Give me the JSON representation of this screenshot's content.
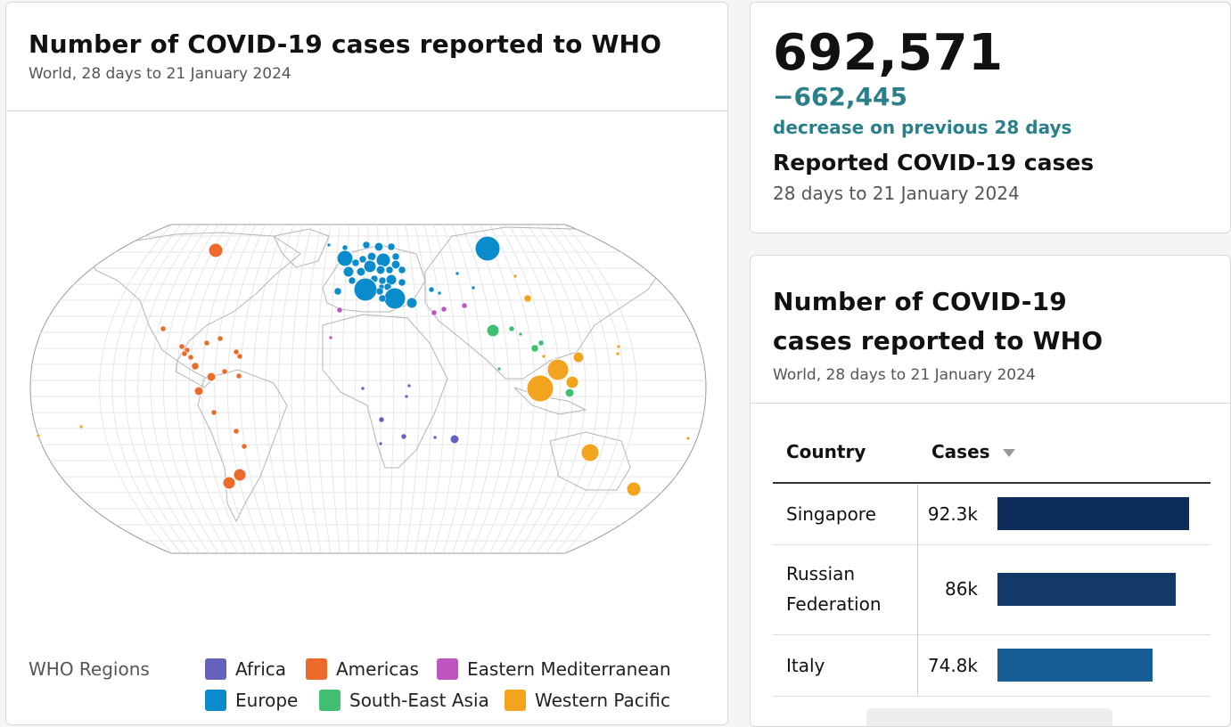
{
  "map_card": {
    "title": "Number of COVID-19 cases reported to WHO",
    "subtitle": "World, 28 days to 21 January 2024",
    "legend_title": "WHO Regions",
    "legend": [
      {
        "label": "Africa",
        "color": "#6462bd"
      },
      {
        "label": "Americas",
        "color": "#ee6a2b"
      },
      {
        "label": "Eastern Mediterranean",
        "color": "#bf56bf"
      },
      {
        "label": "Europe",
        "color": "#0a8ccc"
      },
      {
        "label": "South-East Asia",
        "color": "#40bf72"
      },
      {
        "label": "Western Pacific",
        "color": "#f2a41f"
      }
    ]
  },
  "kpi": {
    "value": "692,571",
    "delta": "−662,445",
    "delta_label": "decrease on previous 28 days",
    "label": "Reported COVID-19 cases",
    "date": "28 days to 21 January 2024",
    "delta_color": "#2a7f8a"
  },
  "table_card": {
    "title": "Number of COVID-19 cases reported to WHO",
    "subtitle": "World, 28 days to 21 January 2024",
    "columns": {
      "country": "Country",
      "cases": "Cases"
    },
    "sort_icon": "sort-descending-icon",
    "rows": [
      {
        "country": "Singapore",
        "value": "92.3k",
        "cases": 92.3,
        "color": "#0e2c5a"
      },
      {
        "country": "Russian Federation",
        "country_lines": [
          "Russian",
          "Federation"
        ],
        "value": "86k",
        "cases": 86,
        "color": "#13396b"
      },
      {
        "country": "Italy",
        "value": "74.8k",
        "cases": 74.8,
        "color": "#175d96"
      }
    ]
  }
}
